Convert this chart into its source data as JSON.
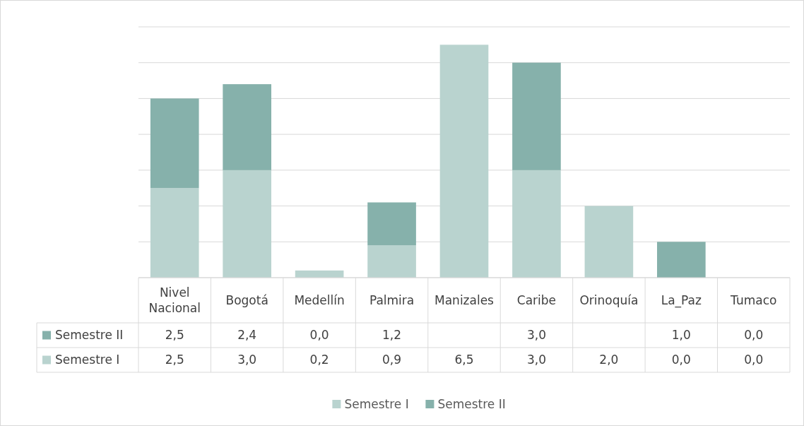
{
  "chart_data": {
    "type": "bar",
    "stacked": true,
    "categories": [
      "Nivel Nacional",
      "Bogotá",
      "Medellín",
      "Palmira",
      "Manizales",
      "Caribe",
      "Orinoquía",
      "La_Paz",
      "Tumaco"
    ],
    "series": [
      {
        "name": "Semestre I",
        "color": "#b9d3cf",
        "values": [
          2.5,
          3.0,
          0.2,
          0.9,
          6.5,
          3.0,
          2.0,
          0.0,
          0.0
        ],
        "value_labels": [
          "2,5",
          "3,0",
          "0,2",
          "0,9",
          "6,5",
          "3,0",
          "2,0",
          "0,0",
          "0,0"
        ]
      },
      {
        "name": "Semestre II",
        "color": "#86b1ab",
        "values": [
          2.5,
          2.4,
          0.0,
          1.2,
          null,
          3.0,
          null,
          1.0,
          0.0
        ],
        "value_labels": [
          "2,5",
          "2,4",
          "0,0",
          "1,2",
          null,
          "3,0",
          null,
          "1,0",
          "0,0"
        ]
      }
    ],
    "ylim": [
      0,
      7
    ],
    "yticks": [
      {
        "value": 0,
        "label": null
      },
      {
        "value": 1,
        "label": null
      },
      {
        "value": 2,
        "label": null
      },
      {
        "value": 3,
        "label": null
      },
      {
        "value": 4,
        "label": null
      },
      {
        "value": 5,
        "label": null
      },
      {
        "value": 6,
        "label": null
      },
      {
        "value": 7,
        "label": null
      }
    ],
    "grid": "y",
    "tick_labels": "x",
    "legend": "bottom"
  }
}
